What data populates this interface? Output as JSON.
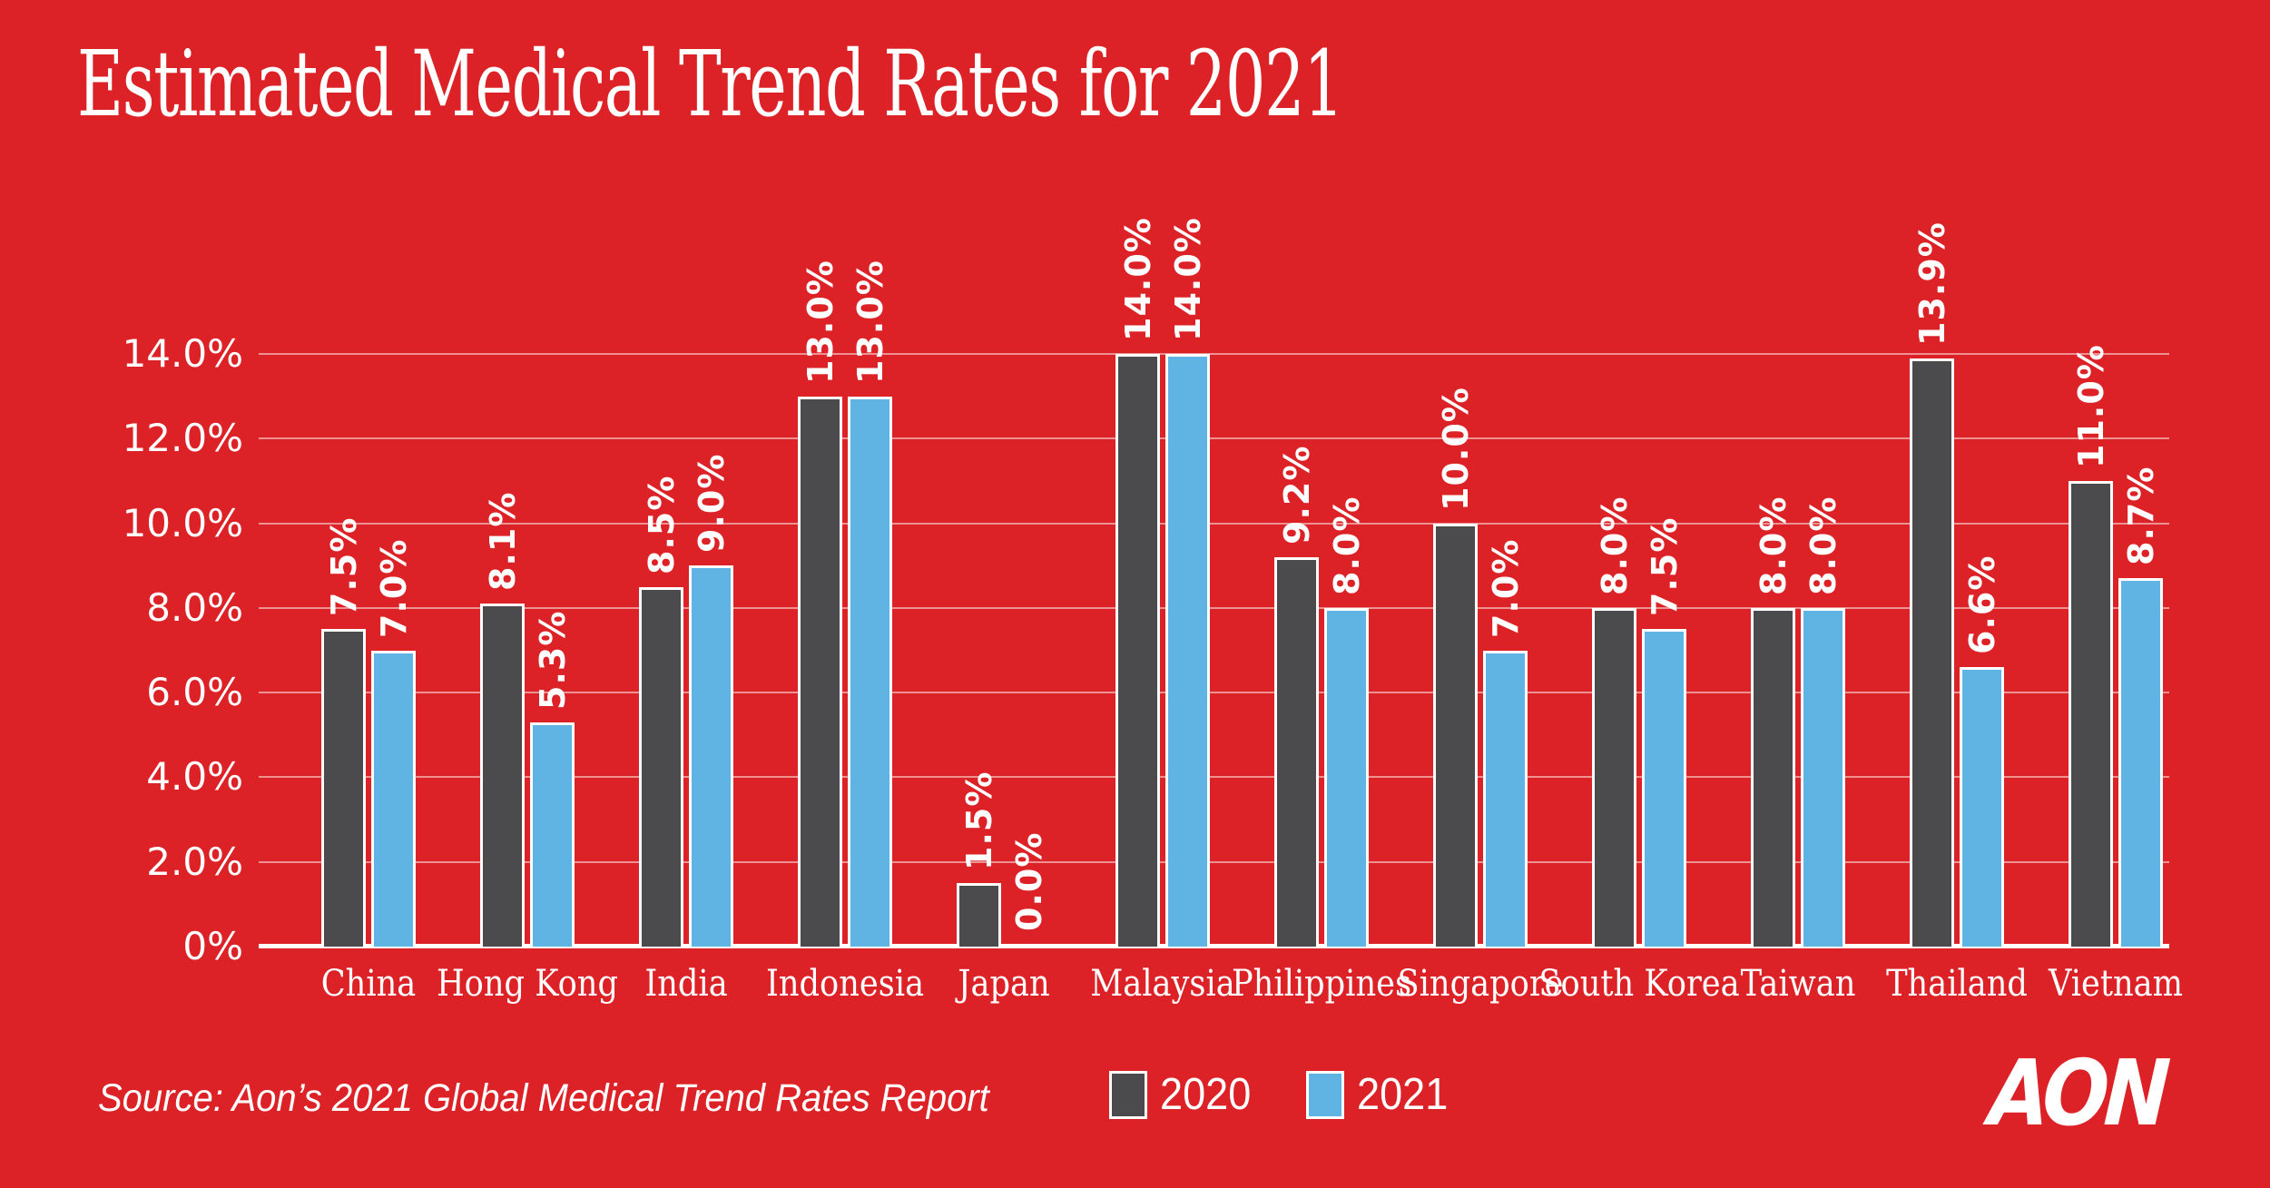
{
  "title": "Estimated Medical Trend Rates for 2021",
  "source": "Source: Aon’s 2021 Global Medical Trend Rates Report",
  "logo_text": "AON",
  "colors": {
    "background": "#DC2226",
    "bar_2020": "#4B4B4E",
    "bar_2021": "#60B4E4",
    "gridline": "rgba(255,255,255,0.5)",
    "text": "#FFFFFF"
  },
  "chart_data": {
    "type": "bar",
    "title": "Estimated Medical Trend Rates for 2021",
    "categories": [
      "China",
      "Hong Kong",
      "India",
      "Indonesia",
      "Japan",
      "Malaysia",
      "Philippines",
      "Singapore",
      "South Korea",
      "Taiwan",
      "Thailand",
      "Vietnam"
    ],
    "series": [
      {
        "name": "2020",
        "color": "#4B4B4E",
        "values": [
          7.5,
          8.1,
          8.5,
          13.0,
          1.5,
          14.0,
          9.2,
          10.0,
          8.0,
          8.0,
          13.9,
          11.0
        ],
        "labels": [
          "7.5%",
          "8.1%",
          "8.5%",
          "13.0%",
          "1.5%",
          "14.0%",
          "9.2%",
          "10.0%",
          "8.0%",
          "8.0%",
          "13.9%",
          "11.0%"
        ]
      },
      {
        "name": "2021",
        "color": "#60B4E4",
        "values": [
          7.0,
          5.3,
          9.0,
          13.0,
          0.0,
          14.0,
          8.0,
          7.0,
          7.5,
          8.0,
          6.6,
          8.7
        ],
        "labels": [
          "7.0%",
          "5.3%",
          "9.0%",
          "13.0%",
          "0.0%",
          "14.0%",
          "8.0%",
          "7.0%",
          "7.5%",
          "8.0%",
          "6.6%",
          "8.7%"
        ]
      }
    ],
    "ylabel": "",
    "xlabel": "",
    "ylim": [
      0,
      14
    ],
    "yticks": [
      {
        "value": 14,
        "label": "14.0%"
      },
      {
        "value": 12,
        "label": "12.0%"
      },
      {
        "value": 10,
        "label": "10.0%"
      },
      {
        "value": 8,
        "label": "8.0%"
      },
      {
        "value": 6,
        "label": "6.0%"
      },
      {
        "value": 4,
        "label": "4.0%"
      },
      {
        "value": 2,
        "label": "2.0%"
      },
      {
        "value": 0,
        "label": "0%"
      }
    ],
    "grid": true,
    "legend_position": "bottom"
  }
}
